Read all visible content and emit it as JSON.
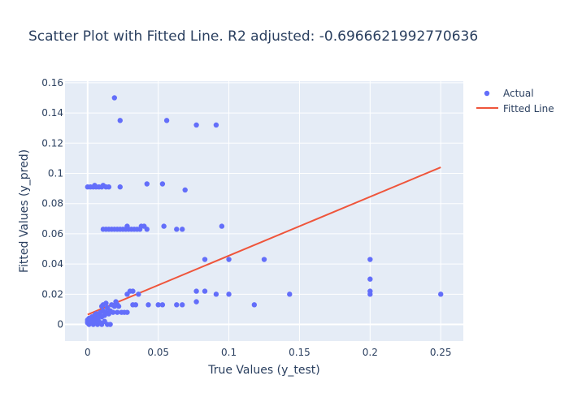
{
  "chart_data": {
    "type": "scatter",
    "title": "Scatter Plot with Fitted Line. R2 adjusted: -0.6966621992770636",
    "xlabel": "True Values (y_test)",
    "ylabel": "Fitted Values (y_pred)",
    "xlim": [
      -0.016,
      0.266
    ],
    "ylim": [
      -0.011,
      0.161
    ],
    "x_ticks": [
      0,
      0.05,
      0.1,
      0.15,
      0.2,
      0.25
    ],
    "x_tick_labels": [
      "0",
      "0.05",
      "0.1",
      "0.15",
      "0.2",
      "0.25"
    ],
    "y_ticks": [
      0,
      0.02,
      0.04,
      0.06,
      0.08,
      0.1,
      0.12,
      0.14,
      0.16
    ],
    "y_tick_labels": [
      "0",
      "0.02",
      "0.04",
      "0.06",
      "0.08",
      "0.1",
      "0.12",
      "0.14",
      "0.16"
    ],
    "grid": true,
    "legend_position": "top-right",
    "colors": {
      "plot_background": "#e5ecf6",
      "grid": "#ffffff",
      "points": "#636efa",
      "fitted_line": "#ef553b"
    },
    "series": [
      {
        "name": "Actual",
        "mode": "markers",
        "points": [
          [
            0.0,
            0.001
          ],
          [
            0.0,
            0.003
          ],
          [
            0.0,
            0.002
          ],
          [
            0.001,
            0.0
          ],
          [
            0.001,
            0.004
          ],
          [
            0.002,
            0.001
          ],
          [
            0.003,
            0.005
          ],
          [
            0.003,
            0.002
          ],
          [
            0.004,
            0.0
          ],
          [
            0.005,
            0.006
          ],
          [
            0.005,
            0.003
          ],
          [
            0.006,
            0.007
          ],
          [
            0.006,
            0.001
          ],
          [
            0.007,
            0.004
          ],
          [
            0.007,
            0.0
          ],
          [
            0.008,
            0.006
          ],
          [
            0.008,
            0.002
          ],
          [
            0.009,
            0.008
          ],
          [
            0.009,
            0.001
          ],
          [
            0.01,
            0.012
          ],
          [
            0.01,
            0.005
          ],
          [
            0.01,
            0.0
          ],
          [
            0.011,
            0.013
          ],
          [
            0.011,
            0.009
          ],
          [
            0.012,
            0.006
          ],
          [
            0.012,
            0.002
          ],
          [
            0.013,
            0.014
          ],
          [
            0.013,
            0.008
          ],
          [
            0.014,
            0.011
          ],
          [
            0.014,
            0.0
          ],
          [
            0.015,
            0.007
          ],
          [
            0.016,
            0.009
          ],
          [
            0.016,
            0.0
          ],
          [
            0.017,
            0.013
          ],
          [
            0.018,
            0.008
          ],
          [
            0.019,
            0.012
          ],
          [
            0.02,
            0.015
          ],
          [
            0.021,
            0.008
          ],
          [
            0.021,
            0.013
          ],
          [
            0.022,
            0.012
          ],
          [
            0.024,
            0.008
          ],
          [
            0.026,
            0.008
          ],
          [
            0.028,
            0.008
          ],
          [
            0.028,
            0.02
          ],
          [
            0.03,
            0.022
          ],
          [
            0.032,
            0.022
          ],
          [
            0.032,
            0.013
          ],
          [
            0.034,
            0.013
          ],
          [
            0.036,
            0.02
          ],
          [
            0.043,
            0.013
          ],
          [
            0.05,
            0.013
          ],
          [
            0.053,
            0.013
          ],
          [
            0.063,
            0.013
          ],
          [
            0.067,
            0.013
          ],
          [
            0.077,
            0.022
          ],
          [
            0.077,
            0.015
          ],
          [
            0.083,
            0.022
          ],
          [
            0.091,
            0.02
          ],
          [
            0.1,
            0.02
          ],
          [
            0.118,
            0.013
          ],
          [
            0.143,
            0.02
          ],
          [
            0.2,
            0.022
          ],
          [
            0.2,
            0.02
          ],
          [
            0.2,
            0.03
          ],
          [
            0.25,
            0.02
          ],
          [
            0.083,
            0.043
          ],
          [
            0.1,
            0.043
          ],
          [
            0.125,
            0.043
          ],
          [
            0.2,
            0.043
          ],
          [
            0.011,
            0.063
          ],
          [
            0.013,
            0.063
          ],
          [
            0.015,
            0.063
          ],
          [
            0.017,
            0.063
          ],
          [
            0.019,
            0.063
          ],
          [
            0.021,
            0.063
          ],
          [
            0.023,
            0.063
          ],
          [
            0.025,
            0.063
          ],
          [
            0.027,
            0.063
          ],
          [
            0.029,
            0.063
          ],
          [
            0.031,
            0.063
          ],
          [
            0.033,
            0.063
          ],
          [
            0.035,
            0.063
          ],
          [
            0.037,
            0.063
          ],
          [
            0.028,
            0.065
          ],
          [
            0.038,
            0.065
          ],
          [
            0.04,
            0.065
          ],
          [
            0.042,
            0.063
          ],
          [
            0.054,
            0.065
          ],
          [
            0.063,
            0.063
          ],
          [
            0.067,
            0.063
          ],
          [
            0.095,
            0.065
          ],
          [
            0.0,
            0.091
          ],
          [
            0.002,
            0.091
          ],
          [
            0.004,
            0.091
          ],
          [
            0.005,
            0.092
          ],
          [
            0.006,
            0.091
          ],
          [
            0.008,
            0.091
          ],
          [
            0.01,
            0.091
          ],
          [
            0.011,
            0.092
          ],
          [
            0.013,
            0.091
          ],
          [
            0.015,
            0.091
          ],
          [
            0.023,
            0.091
          ],
          [
            0.042,
            0.093
          ],
          [
            0.053,
            0.093
          ],
          [
            0.069,
            0.089
          ],
          [
            0.019,
            0.15
          ],
          [
            0.023,
            0.135
          ],
          [
            0.056,
            0.135
          ],
          [
            0.077,
            0.132
          ],
          [
            0.091,
            0.132
          ]
        ]
      },
      {
        "name": "Fitted Line",
        "mode": "lines",
        "points": [
          [
            0.0,
            0.0065
          ],
          [
            0.25,
            0.104
          ]
        ]
      }
    ]
  }
}
